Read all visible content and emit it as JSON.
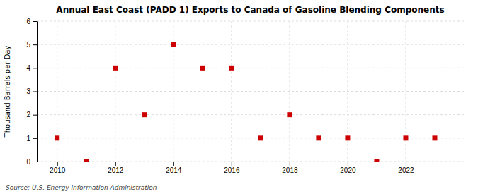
{
  "chart_data": {
    "type": "scatter",
    "title": "Annual East Coast (PADD 1) Exports to Canada of Gasoline Blending Components",
    "ylabel": "Thousand Barrels per Day",
    "annotations": [
      "Source: U.S. Energy Information Administration"
    ],
    "x": [
      2010,
      2011,
      2012,
      2013,
      2014,
      2015,
      2016,
      2017,
      2018,
      2019,
      2020,
      2021,
      2022,
      2023
    ],
    "values": [
      1,
      0,
      4,
      2,
      5,
      4,
      4,
      1,
      2,
      1,
      1,
      0,
      1,
      1
    ],
    "color": "#cc0000",
    "marker": "square",
    "xlim": [
      2009.3,
      2024.0
    ],
    "xticks": [
      2010,
      2012,
      2014,
      2016,
      2018,
      2020,
      2022
    ],
    "ylim": [
      0,
      6
    ],
    "yticks": [
      0,
      1,
      2,
      3,
      4,
      5,
      6
    ],
    "grid": true
  }
}
